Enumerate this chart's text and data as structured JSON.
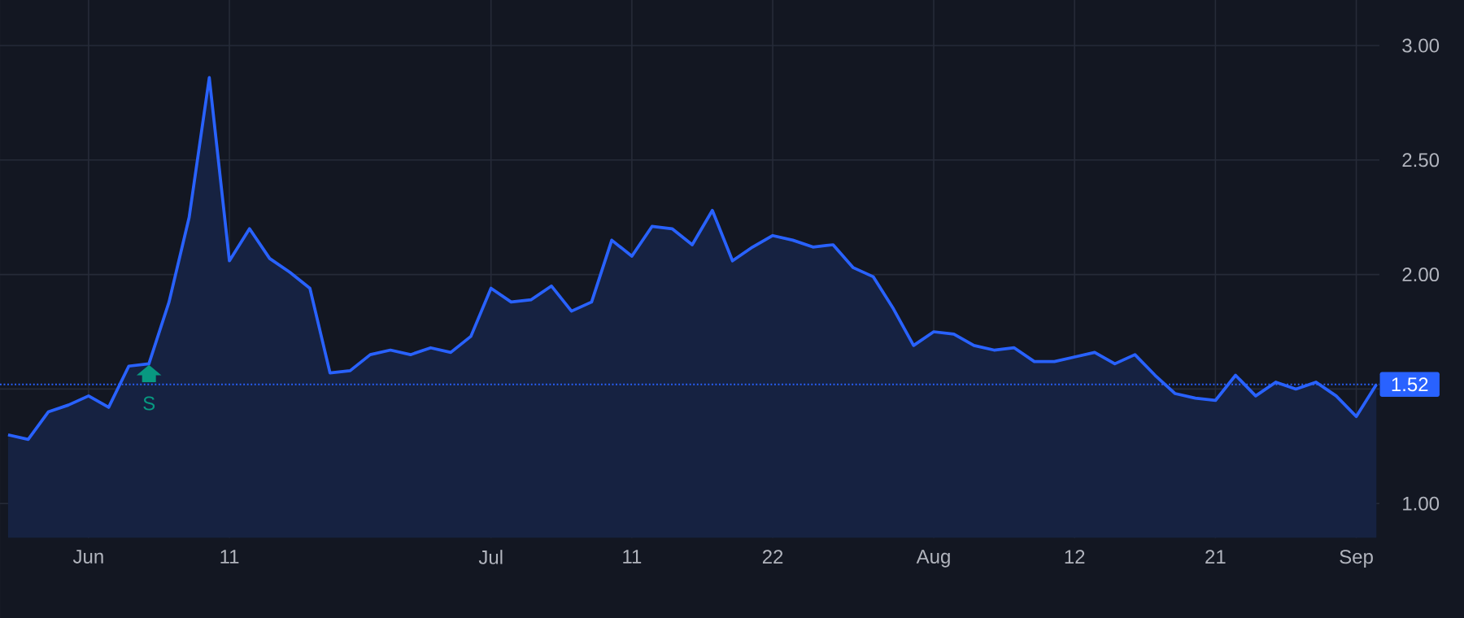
{
  "chart_data": {
    "type": "area",
    "color": "#2962ff",
    "categories": [
      null,
      null,
      null,
      null,
      "Jun",
      null,
      null,
      null,
      null,
      null,
      null,
      "11",
      null,
      null,
      null,
      null,
      null,
      null,
      null,
      null,
      null,
      null,
      null,
      null,
      "Jul",
      null,
      null,
      null,
      null,
      null,
      null,
      "11",
      null,
      null,
      null,
      null,
      null,
      null,
      "22",
      null,
      null,
      null,
      null,
      null,
      null,
      null,
      "Aug",
      null,
      null,
      null,
      null,
      null,
      null,
      "12",
      null,
      null,
      null,
      null,
      null,
      null,
      "21",
      null,
      null,
      null,
      null,
      null,
      null,
      "Sep",
      null
    ],
    "values": [
      1.3,
      1.28,
      1.4,
      1.43,
      1.47,
      1.42,
      1.6,
      1.61,
      1.88,
      2.25,
      2.86,
      2.06,
      2.2,
      2.07,
      2.01,
      1.94,
      1.57,
      1.58,
      1.65,
      1.67,
      1.65,
      1.68,
      1.66,
      1.73,
      1.94,
      1.88,
      1.89,
      1.95,
      1.84,
      1.88,
      2.15,
      2.08,
      2.21,
      2.2,
      2.13,
      2.28,
      2.06,
      2.12,
      2.17,
      2.15,
      2.12,
      2.13,
      2.03,
      1.99,
      1.85,
      1.69,
      1.75,
      1.74,
      1.69,
      1.67,
      1.68,
      1.62,
      1.62,
      1.64,
      1.66,
      1.61,
      1.65,
      1.56,
      1.48,
      1.46,
      1.45,
      1.56,
      1.47,
      1.53,
      1.5,
      1.53,
      1.47,
      1.38,
      1.52
    ],
    "ylim": [
      0.85,
      3.35
    ],
    "yticks": [
      {
        "value": 1,
        "label": "1.00"
      },
      {
        "value": 1.5,
        "label": null
      },
      {
        "value": 2,
        "label": "2.00"
      },
      {
        "value": 2.5,
        "label": "2.50"
      },
      {
        "value": 3,
        "label": "3.00"
      }
    ],
    "grid": true,
    "ref_lines": [
      {
        "axis": "y",
        "value": 1.52,
        "label": "1.52",
        "color": "#2962ff",
        "line_style": "dotted"
      }
    ],
    "annotations": [
      "S"
    ]
  }
}
